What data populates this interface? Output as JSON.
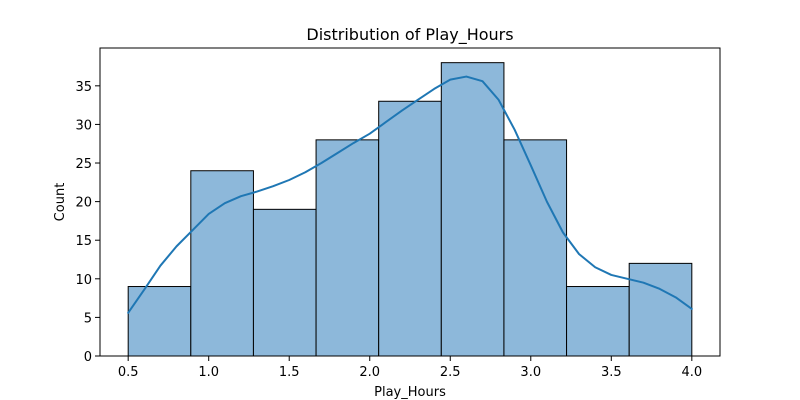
{
  "chart_data": {
    "type": "bar",
    "title": "Distribution of Play_Hours",
    "xlabel": "Play_Hours",
    "ylabel": "Count",
    "bin_edges": [
      0.5,
      0.8889,
      1.2778,
      1.6667,
      2.0556,
      2.4444,
      2.8333,
      3.2222,
      3.6111,
      4.0
    ],
    "values": [
      9,
      24,
      19,
      28,
      33,
      38,
      28,
      9,
      12
    ],
    "kde": {
      "x": [
        0.5,
        0.6,
        0.7,
        0.8,
        0.9,
        1.0,
        1.1,
        1.2,
        1.3,
        1.4,
        1.5,
        1.6,
        1.7,
        1.8,
        1.9,
        2.0,
        2.1,
        2.2,
        2.3,
        2.4,
        2.5,
        2.6,
        2.7,
        2.8,
        2.9,
        3.0,
        3.1,
        3.2,
        3.3,
        3.4,
        3.5,
        3.6,
        3.7,
        3.8,
        3.9,
        4.0
      ],
      "y": [
        5.6,
        8.6,
        11.7,
        14.2,
        16.3,
        18.4,
        19.8,
        20.7,
        21.3,
        22.0,
        22.8,
        23.8,
        25.0,
        26.3,
        27.6,
        28.8,
        30.3,
        31.8,
        33.2,
        34.6,
        35.8,
        36.2,
        35.6,
        33.2,
        29.3,
        24.7,
        20.0,
        16.0,
        13.2,
        11.5,
        10.5,
        10.0,
        9.5,
        8.7,
        7.6,
        6.1
      ]
    },
    "xticks": [
      "0.5",
      "1.0",
      "1.5",
      "2.0",
      "2.5",
      "3.0",
      "3.5",
      "4.0"
    ],
    "yticks": [
      "0",
      "5",
      "10",
      "15",
      "20",
      "25",
      "30",
      "35"
    ],
    "xlim": [
      0.325,
      4.175
    ],
    "ylim": [
      0,
      39.9
    ],
    "grid": false,
    "colors": {
      "bar_fill": "#8db8da",
      "bar_edge": "#000000",
      "kde_line": "#1f77b4"
    }
  }
}
